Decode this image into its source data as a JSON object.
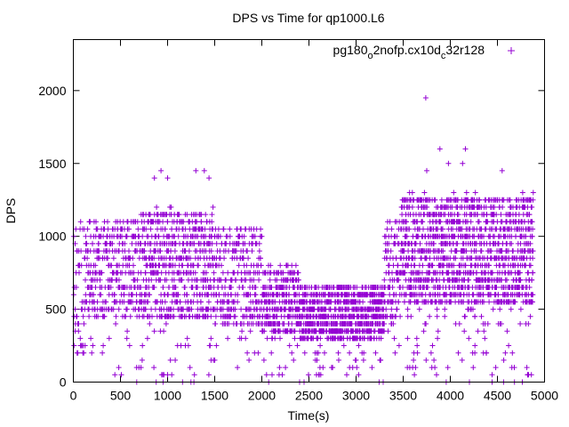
{
  "chart_data": {
    "type": "scatter",
    "title": "DPS vs Time for qp1000.L6",
    "xlabel": "Time(s)",
    "ylabel": "DPS",
    "xlim": [
      0,
      5000
    ],
    "ylim": [
      0,
      2350
    ],
    "x_ticks": [
      0,
      500,
      1000,
      1500,
      2000,
      2500,
      3000,
      3500,
      4000,
      4500,
      5000
    ],
    "y_ticks": [
      0,
      500,
      1000,
      1500,
      2000
    ],
    "grid": false,
    "legend_position": "top-right",
    "marker": "+",
    "color": "#9400d3",
    "series": [
      {
        "name_parts": {
          "base": "pg180",
          "sub1": "o",
          "mid": "2nofp.cx10d",
          "sub2": "c",
          "end": "32r128"
        },
        "time_range_s": [
          0,
          4880
        ],
        "dps_levels": [
          0,
          50,
          100,
          150,
          200,
          250,
          300,
          350,
          400,
          450,
          500,
          550,
          600,
          650,
          700,
          750,
          800,
          850,
          900,
          950,
          1000,
          1050,
          1100,
          1150,
          1200,
          1250,
          1300,
          1350,
          1400,
          1450
        ],
        "notable_points": [
          {
            "x": 3740,
            "y": 1950
          },
          {
            "x": 3890,
            "y": 1600
          },
          {
            "x": 4160,
            "y": 1600
          },
          {
            "x": 3980,
            "y": 1500
          },
          {
            "x": 4130,
            "y": 1500
          },
          {
            "x": 3750,
            "y": 1450
          },
          {
            "x": 930,
            "y": 1450
          },
          {
            "x": 1300,
            "y": 1450
          },
          {
            "x": 1390,
            "y": 1450
          },
          {
            "x": 4550,
            "y": 1450
          },
          {
            "x": 1000,
            "y": 1400
          },
          {
            "x": 1440,
            "y": 1400
          },
          {
            "x": 860,
            "y": 1400
          }
        ],
        "phases": [
          {
            "start": 0,
            "end": 120,
            "mean": 650,
            "spread": 450,
            "density": 2
          },
          {
            "start": 120,
            "end": 700,
            "mean": 780,
            "spread": 330,
            "density": 3
          },
          {
            "start": 700,
            "end": 1500,
            "mean": 800,
            "spread": 380,
            "density": 4
          },
          {
            "start": 1500,
            "end": 2000,
            "mean": 720,
            "spread": 330,
            "density": 3
          },
          {
            "start": 2000,
            "end": 2400,
            "mean": 560,
            "spread": 230,
            "density": 4
          },
          {
            "start": 2400,
            "end": 3300,
            "mean": 480,
            "spread": 180,
            "density": 5
          },
          {
            "start": 3300,
            "end": 3480,
            "mean": 760,
            "spread": 340,
            "density": 3
          },
          {
            "start": 3480,
            "end": 4880,
            "mean": 900,
            "spread": 380,
            "density": 5
          }
        ]
      }
    ]
  }
}
